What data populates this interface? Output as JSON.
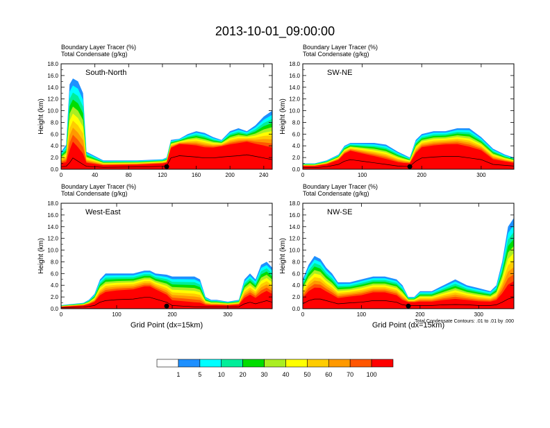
{
  "page_title": "2013-10-01_09:00:00",
  "palette": [
    "#ffffff",
    "#1e90ff",
    "#00ffff",
    "#00ee99",
    "#00dd00",
    "#aaee22",
    "#ffff00",
    "#ffcc00",
    "#ff9900",
    "#ff5500",
    "#ff0000"
  ],
  "colorbar": {
    "labels": [
      "1",
      "5",
      "10",
      "20",
      "30",
      "40",
      "50",
      "60",
      "70",
      "100"
    ]
  },
  "chart_data": [
    {
      "type": "contour",
      "id": "south-north",
      "panel_label": "South-North",
      "subtitle_1": "Boundary Layer Tracer   (%)",
      "subtitle_2": "Total Condensate   (g/kg)",
      "ylabel": "Height (km)",
      "xlabel": "",
      "xlim": [
        0,
        250
      ],
      "ylim": [
        0,
        18
      ],
      "x_ticks": [
        "0",
        "40",
        "80",
        "120",
        "160",
        "200",
        "240"
      ],
      "y_ticks": [
        "0.0",
        "2.0",
        "4.0",
        "6.0",
        "8.0",
        "10.0",
        "12.0",
        "14.0",
        "16.0",
        "18.0"
      ],
      "marker_x": 125,
      "envelope": {
        "x": [
          0,
          6,
          10,
          14,
          20,
          26,
          30,
          50,
          90,
          120,
          125,
          130,
          140,
          150,
          160,
          170,
          180,
          190,
          200,
          210,
          220,
          230,
          240,
          250
        ],
        "outer": [
          3.0,
          4.2,
          14.5,
          15.5,
          15.0,
          13.0,
          3.0,
          1.5,
          1.5,
          1.7,
          2.0,
          5.0,
          5.2,
          6.0,
          6.5,
          6.2,
          5.5,
          5.0,
          6.5,
          7.0,
          6.5,
          7.5,
          9.0,
          10.0
        ],
        "core": [
          0.8,
          0.9,
          2.0,
          3.5,
          2.5,
          1.5,
          0.9,
          0.6,
          0.7,
          0.9,
          1.0,
          3.5,
          4.2,
          4.0,
          3.8,
          3.5,
          3.5,
          3.8,
          4.0,
          4.2,
          4.5,
          4.0,
          3.5,
          3.0
        ]
      }
    },
    {
      "type": "contour",
      "id": "sw-ne",
      "panel_label": "SW-NE",
      "subtitle_1": "Boundary Layer Tracer   (%)",
      "subtitle_2": "Total Condensate   (g/kg)",
      "ylabel": "Height (km)",
      "xlabel": "",
      "xlim": [
        0,
        355
      ],
      "ylim": [
        0,
        18
      ],
      "x_ticks": [
        "0",
        "100",
        "200",
        "300"
      ],
      "y_ticks": [
        "0.0",
        "2.0",
        "4.0",
        "6.0",
        "8.0",
        "10.0",
        "12.0",
        "14.0",
        "16.0",
        "18.0"
      ],
      "marker_x": 180,
      "envelope": {
        "x": [
          0,
          20,
          40,
          60,
          70,
          80,
          100,
          120,
          140,
          160,
          170,
          180,
          190,
          200,
          220,
          240,
          260,
          280,
          300,
          320,
          340,
          355
        ],
        "outer": [
          1.0,
          1.0,
          1.5,
          2.5,
          4.0,
          4.5,
          4.5,
          4.5,
          4.2,
          3.0,
          2.5,
          2.0,
          5.0,
          6.0,
          6.5,
          6.5,
          7.0,
          7.0,
          5.5,
          3.5,
          2.5,
          2.0
        ],
        "core": [
          0.5,
          0.5,
          0.8,
          1.5,
          2.5,
          3.0,
          2.5,
          2.0,
          1.5,
          1.0,
          0.9,
          0.9,
          2.5,
          3.5,
          3.8,
          4.0,
          4.0,
          3.5,
          3.0,
          1.5,
          1.2,
          1.0
        ]
      }
    },
    {
      "type": "contour",
      "id": "west-east",
      "panel_label": "West-East",
      "subtitle_1": "Boundary Layer Tracer   (%)",
      "subtitle_2": "Total Condensate   (g/kg)",
      "ylabel": "Height (km)",
      "xlabel": "Grid Point (dx=15km)",
      "xlim": [
        0,
        380
      ],
      "ylim": [
        0,
        18
      ],
      "x_ticks": [
        "0",
        "100",
        "200",
        "300"
      ],
      "y_ticks": [
        "0.0",
        "2.0",
        "4.0",
        "6.0",
        "8.0",
        "10.0",
        "12.0",
        "14.0",
        "16.0",
        "18.0"
      ],
      "marker_x": 190,
      "envelope": {
        "x": [
          0,
          20,
          40,
          50,
          60,
          70,
          80,
          100,
          130,
          150,
          160,
          170,
          190,
          200,
          220,
          240,
          250,
          260,
          270,
          280,
          300,
          320,
          330,
          340,
          350,
          360,
          370,
          380
        ],
        "outer": [
          0.6,
          0.8,
          1.0,
          1.5,
          2.5,
          5.0,
          6.0,
          6.0,
          6.0,
          6.5,
          6.5,
          6.0,
          5.8,
          5.5,
          5.5,
          5.5,
          5.0,
          2.0,
          1.5,
          1.5,
          1.2,
          1.5,
          5.0,
          6.0,
          5.0,
          7.5,
          8.0,
          7.0
        ],
        "core": [
          0.3,
          0.4,
          0.5,
          0.7,
          1.0,
          2.0,
          2.5,
          2.8,
          3.0,
          3.5,
          3.5,
          3.0,
          2.0,
          1.0,
          0.8,
          0.6,
          0.6,
          0.5,
          0.5,
          0.5,
          0.5,
          0.6,
          1.5,
          2.0,
          1.5,
          2.0,
          2.5,
          2.0
        ]
      }
    },
    {
      "type": "contour",
      "id": "nw-se",
      "panel_label": "NW-SE",
      "subtitle_1": "Boundary Layer Tracer   (%)",
      "subtitle_2": "Total Condensate   (g/kg)",
      "ylabel": "Height (km)",
      "xlabel": "Grid Point (dx=15km)",
      "xlim": [
        0,
        360
      ],
      "ylim": [
        0,
        18
      ],
      "x_ticks": [
        "0",
        "100",
        "200",
        "300"
      ],
      "y_ticks": [
        "0.0",
        "2.0",
        "4.0",
        "6.0",
        "8.0",
        "10.0",
        "12.0",
        "14.0",
        "16.0",
        "18.0"
      ],
      "marker_x": 180,
      "annotation": "Total Condensate Contours: .01 to .01 by .000",
      "envelope": {
        "x": [
          0,
          10,
          20,
          30,
          40,
          50,
          60,
          80,
          100,
          120,
          140,
          160,
          170,
          180,
          190,
          200,
          220,
          240,
          260,
          280,
          300,
          320,
          330,
          340,
          350,
          360
        ],
        "outer": [
          5.0,
          7.5,
          9.0,
          8.5,
          7.0,
          6.0,
          4.5,
          4.5,
          5.0,
          5.5,
          5.5,
          5.0,
          4.0,
          2.0,
          2.0,
          3.0,
          3.0,
          4.0,
          5.0,
          4.0,
          3.5,
          3.0,
          4.0,
          8.0,
          14.0,
          15.5
        ],
        "core": [
          1.5,
          2.5,
          3.0,
          3.0,
          2.5,
          2.0,
          1.5,
          1.8,
          2.0,
          2.5,
          2.5,
          2.0,
          1.2,
          1.0,
          1.0,
          1.0,
          1.0,
          1.2,
          1.3,
          1.2,
          1.0,
          1.0,
          1.2,
          2.0,
          3.0,
          3.5
        ]
      }
    }
  ]
}
